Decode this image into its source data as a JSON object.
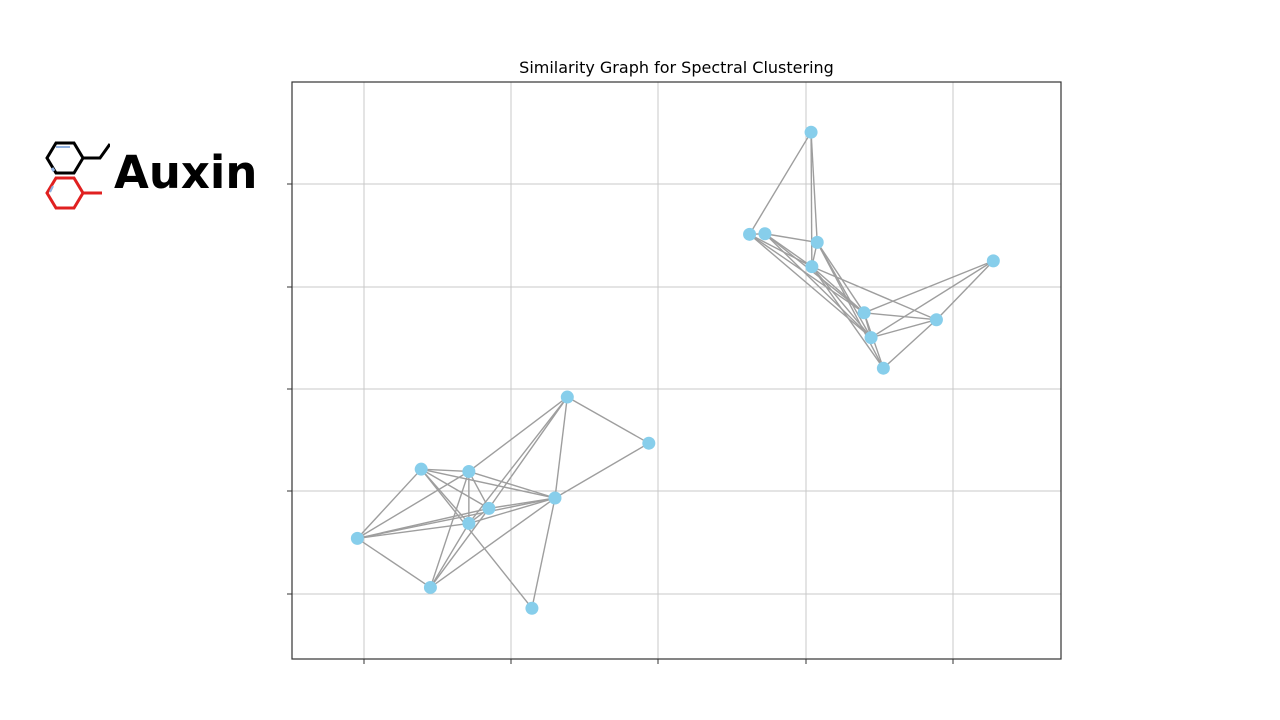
{
  "logo": {
    "text": "Auxin",
    "icon": "molecule-icon",
    "colors": {
      "top": "#000000",
      "bottom": "#e02020",
      "accent": "#8fb0e0"
    }
  },
  "chart_data": {
    "type": "network-graph",
    "title": "Similarity Graph for Spectral Clustering",
    "grid": true,
    "tick_labels": false,
    "colors": {
      "node": "#87ceeb",
      "edge": "#9e9e9e",
      "grid": "#c8c8c8",
      "frame": "#333333"
    },
    "xlim": [
      0,
      100
    ],
    "ylim": [
      0,
      100
    ],
    "nodes": [
      {
        "id": 0,
        "x": 67.5,
        "y": 91.3
      },
      {
        "id": 1,
        "x": 61.5,
        "y": 73.7
      },
      {
        "id": 2,
        "x": 59.5,
        "y": 73.6
      },
      {
        "id": 3,
        "x": 68.3,
        "y": 72.2
      },
      {
        "id": 4,
        "x": 67.6,
        "y": 68.0
      },
      {
        "id": 5,
        "x": 91.2,
        "y": 69.0
      },
      {
        "id": 6,
        "x": 74.4,
        "y": 60.0
      },
      {
        "id": 7,
        "x": 75.3,
        "y": 55.7
      },
      {
        "id": 8,
        "x": 83.8,
        "y": 58.8
      },
      {
        "id": 9,
        "x": 76.9,
        "y": 50.4
      },
      {
        "id": 10,
        "x": 35.8,
        "y": 45.4
      },
      {
        "id": 11,
        "x": 46.4,
        "y": 37.4
      },
      {
        "id": 12,
        "x": 23.0,
        "y": 32.5
      },
      {
        "id": 13,
        "x": 16.8,
        "y": 32.9
      },
      {
        "id": 14,
        "x": 25.6,
        "y": 26.1
      },
      {
        "id": 15,
        "x": 34.2,
        "y": 27.9
      },
      {
        "id": 16,
        "x": 23.0,
        "y": 23.5
      },
      {
        "id": 17,
        "x": 8.5,
        "y": 20.9
      },
      {
        "id": 18,
        "x": 18.0,
        "y": 12.4
      },
      {
        "id": 19,
        "x": 31.2,
        "y": 8.8
      }
    ],
    "edges": [
      [
        0,
        2
      ],
      [
        0,
        3
      ],
      [
        0,
        4
      ],
      [
        1,
        2
      ],
      [
        1,
        3
      ],
      [
        1,
        4
      ],
      [
        1,
        6
      ],
      [
        1,
        7
      ],
      [
        2,
        4
      ],
      [
        2,
        6
      ],
      [
        2,
        7
      ],
      [
        3,
        4
      ],
      [
        3,
        6
      ],
      [
        3,
        7
      ],
      [
        3,
        9
      ],
      [
        4,
        6
      ],
      [
        4,
        7
      ],
      [
        4,
        8
      ],
      [
        4,
        9
      ],
      [
        5,
        6
      ],
      [
        5,
        7
      ],
      [
        5,
        8
      ],
      [
        6,
        7
      ],
      [
        6,
        8
      ],
      [
        6,
        9
      ],
      [
        7,
        8
      ],
      [
        8,
        9
      ],
      [
        10,
        11
      ],
      [
        10,
        12
      ],
      [
        10,
        14
      ],
      [
        10,
        16
      ],
      [
        10,
        15
      ],
      [
        11,
        15
      ],
      [
        12,
        13
      ],
      [
        12,
        14
      ],
      [
        12,
        15
      ],
      [
        12,
        16
      ],
      [
        12,
        17
      ],
      [
        12,
        18
      ],
      [
        13,
        14
      ],
      [
        13,
        15
      ],
      [
        13,
        16
      ],
      [
        13,
        17
      ],
      [
        13,
        19
      ],
      [
        14,
        15
      ],
      [
        14,
        16
      ],
      [
        14,
        17
      ],
      [
        14,
        18
      ],
      [
        15,
        16
      ],
      [
        15,
        17
      ],
      [
        15,
        18
      ],
      [
        15,
        19
      ],
      [
        16,
        17
      ],
      [
        16,
        18
      ],
      [
        17,
        18
      ]
    ]
  }
}
